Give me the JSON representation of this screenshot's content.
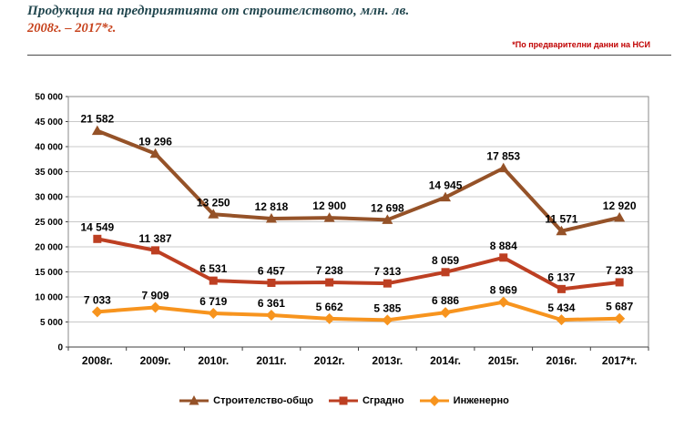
{
  "header": {
    "title": "Продукция на предприятията от строителството, млн. лв.",
    "subtitle": "2008г. – 2017*г.",
    "note": "*По предварителни данни на НСИ"
  },
  "chart_data": {
    "type": "line",
    "stacked": true,
    "title": "Продукция на предприятията от строителството, млн. лв. 2008г. – 2017*г.",
    "categories": [
      "2008г.",
      "2009г.",
      "2010г.",
      "2011г.",
      "2012г.",
      "2013г.",
      "2014г.",
      "2015г.",
      "2016г.",
      "2017*г."
    ],
    "series": [
      {
        "name": "Строителство-общо",
        "color": "#955228",
        "marker": "triangle",
        "values": [
          21582,
          19296,
          13250,
          12818,
          12900,
          12698,
          14945,
          17853,
          11571,
          12920
        ]
      },
      {
        "name": "Сградно",
        "color": "#BD3F22",
        "marker": "square",
        "values": [
          14549,
          11387,
          6531,
          6457,
          7238,
          7313,
          8059,
          8884,
          6137,
          7233
        ]
      },
      {
        "name": "Инженерно",
        "color": "#F7941E",
        "marker": "diamond",
        "values": [
          7033,
          7909,
          6719,
          6361,
          5662,
          5385,
          6886,
          8969,
          5434,
          5687
        ]
      }
    ],
    "ylim": [
      0,
      50000
    ],
    "ytick_step": 5000,
    "ytick_labels": [
      "0",
      "5 000",
      "10 000",
      "15 000",
      "20 000",
      "25 000",
      "30 000",
      "35 000",
      "40 000",
      "45 000",
      "50 000"
    ],
    "grid": true,
    "value_labels": true,
    "legend_position": "bottom"
  },
  "colors": {
    "title": "#21464E",
    "subtitle": "#C7431D",
    "note": "#C00000",
    "gridline": "#c8c8c8",
    "plot_border": "#8a8a8a",
    "axis": "#3f3f3f"
  }
}
